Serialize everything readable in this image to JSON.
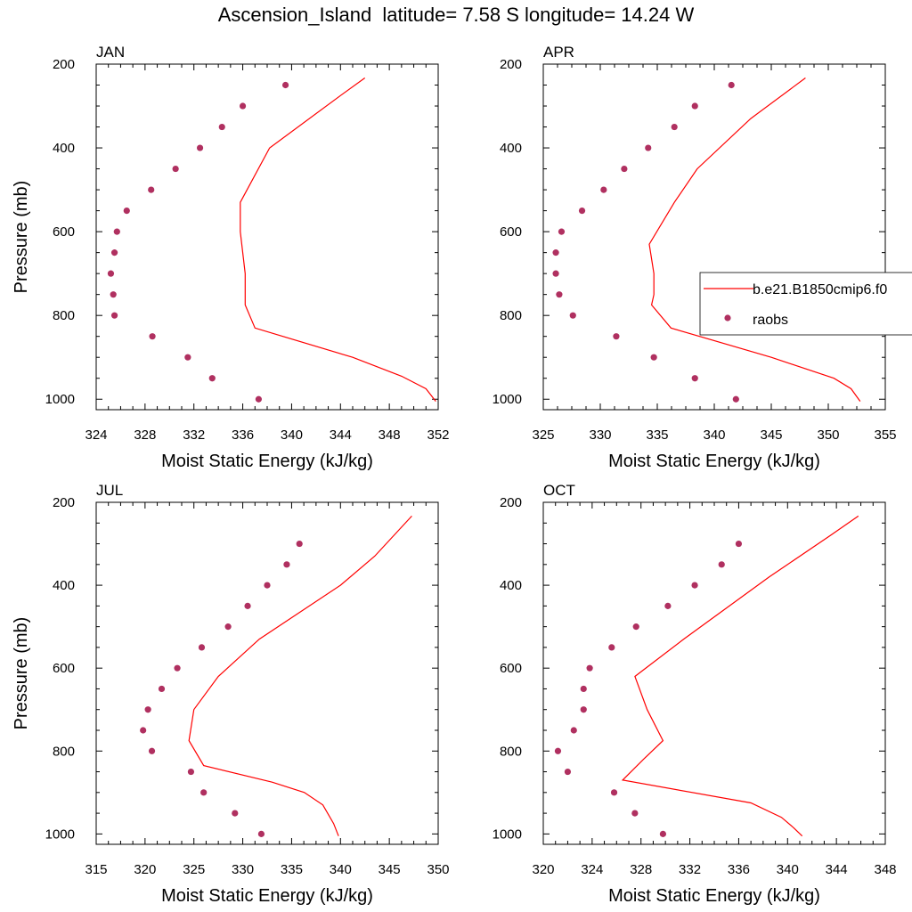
{
  "title": "Ascension_Island  latitude= 7.58 S longitude= 14.24 W",
  "colors": {
    "model": "#ff0000",
    "obs": "#b03060",
    "axis": "#000000"
  },
  "legend": {
    "placement": "right, overlapping APR panel",
    "model_label": "b.e21.B1850cmip6.f0",
    "obs_label": "raobs"
  },
  "chart_data": [
    {
      "type": "line",
      "panel_label": "JAN",
      "xlabel": "Moist Static Energy (kJ/kg)",
      "ylabel": "Pressure (mb)",
      "xlim": [
        324,
        352
      ],
      "ylim": [
        1025,
        200
      ],
      "xticks": [
        324,
        328,
        332,
        336,
        340,
        344,
        348,
        352
      ],
      "yticks": [
        200,
        400,
        600,
        800,
        1000
      ],
      "series": [
        {
          "name": "b.e21.B1850cmip6.f0",
          "kind": "line",
          "x": [
            346.0,
            344.0,
            338.2,
            335.8,
            335.8,
            336.2,
            336.2,
            337.0,
            345.0,
            349.0,
            351.0,
            351.8
          ],
          "y": [
            233,
            275,
            400,
            530,
            600,
            700,
            775,
            830,
            900,
            945,
            975,
            1005
          ]
        },
        {
          "name": "raobs",
          "kind": "scatter",
          "x": [
            339.5,
            336.0,
            334.3,
            332.5,
            330.5,
            328.5,
            326.5,
            325.7,
            325.5,
            325.2,
            325.4,
            325.5,
            328.6,
            331.5,
            333.5,
            337.3
          ],
          "y": [
            250,
            300,
            350,
            400,
            450,
            500,
            550,
            600,
            650,
            700,
            750,
            800,
            850,
            900,
            950,
            1000
          ]
        }
      ]
    },
    {
      "type": "line",
      "panel_label": "APR",
      "xlabel": "Moist Static Energy (kJ/kg)",
      "ylabel": "",
      "xlim": [
        325,
        355
      ],
      "ylim": [
        1025,
        200
      ],
      "xticks": [
        325,
        330,
        335,
        340,
        345,
        350,
        355
      ],
      "yticks": [
        200,
        400,
        600,
        800,
        1000
      ],
      "series": [
        {
          "name": "b.e21.B1850cmip6.f0",
          "kind": "line",
          "x": [
            348.0,
            343.2,
            338.5,
            336.5,
            334.3,
            334.7,
            334.7,
            334.5,
            336.2,
            345.0,
            350.5,
            352.0,
            352.8
          ],
          "y": [
            233,
            330,
            450,
            530,
            630,
            700,
            750,
            775,
            830,
            900,
            950,
            975,
            1005
          ]
        },
        {
          "name": "raobs",
          "kind": "scatter",
          "x": [
            341.5,
            338.3,
            336.5,
            334.2,
            332.1,
            330.3,
            328.4,
            326.6,
            326.1,
            326.1,
            326.4,
            327.6,
            331.4,
            334.7,
            338.3,
            341.9
          ],
          "y": [
            250,
            300,
            350,
            400,
            450,
            500,
            550,
            600,
            650,
            700,
            750,
            800,
            850,
            900,
            950,
            1000
          ]
        }
      ]
    },
    {
      "type": "line",
      "panel_label": "JUL",
      "xlabel": "Moist Static Energy (kJ/kg)",
      "ylabel": "Pressure (mb)",
      "xlim": [
        315,
        350
      ],
      "ylim": [
        1025,
        200
      ],
      "xticks": [
        315,
        320,
        325,
        330,
        335,
        340,
        345,
        350
      ],
      "yticks": [
        200,
        400,
        600,
        800,
        1000
      ],
      "series": [
        {
          "name": "b.e21.B1850cmip6.f0",
          "kind": "line",
          "x": [
            347.3,
            343.5,
            340.0,
            331.7,
            327.5,
            325.0,
            324.5,
            326.0,
            333.0,
            336.3,
            338.2,
            339.3,
            339.8
          ],
          "y": [
            233,
            330,
            400,
            530,
            620,
            700,
            775,
            835,
            875,
            900,
            930,
            975,
            1005
          ]
        },
        {
          "name": "raobs",
          "kind": "scatter",
          "x": [
            335.8,
            334.5,
            332.5,
            330.5,
            328.5,
            325.8,
            323.3,
            321.7,
            320.3,
            319.8,
            320.7,
            324.7,
            326.0,
            329.2,
            331.9
          ],
          "y": [
            300,
            350,
            400,
            450,
            500,
            550,
            600,
            650,
            700,
            750,
            800,
            850,
            900,
            950,
            1000
          ]
        }
      ]
    },
    {
      "type": "line",
      "panel_label": "OCT",
      "xlabel": "Moist Static Energy (kJ/kg)",
      "ylabel": "",
      "xlim": [
        320,
        348
      ],
      "ylim": [
        1025,
        200
      ],
      "xticks": [
        320,
        324,
        328,
        332,
        336,
        340,
        344,
        348
      ],
      "yticks": [
        200,
        400,
        600,
        800,
        1000
      ],
      "series": [
        {
          "name": "b.e21.B1850cmip6.f0",
          "kind": "line",
          "x": [
            345.8,
            343.5,
            338.5,
            331.5,
            327.5,
            328.5,
            329.8,
            328.2,
            326.5,
            337.0,
            339.5,
            340.5,
            341.2
          ],
          "y": [
            233,
            280,
            380,
            530,
            620,
            700,
            775,
            820,
            870,
            925,
            960,
            985,
            1005
          ]
        },
        {
          "name": "raobs",
          "kind": "scatter",
          "x": [
            336.0,
            334.6,
            332.4,
            330.2,
            327.6,
            325.6,
            323.8,
            323.3,
            323.3,
            322.5,
            321.2,
            322.0,
            325.8,
            327.5,
            329.8
          ],
          "y": [
            300,
            350,
            400,
            450,
            500,
            550,
            600,
            650,
            700,
            750,
            800,
            850,
            900,
            950,
            1000
          ]
        }
      ]
    }
  ]
}
